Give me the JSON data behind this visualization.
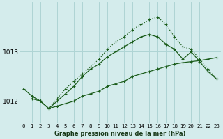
{
  "title": "Graphe pression niveau de la mer (hPa)",
  "bg_color": "#d4ecec",
  "grid_color": "#aed4d4",
  "line_color": "#1a5c1a",
  "xlim": [
    -0.5,
    23.5
  ],
  "ylim": [
    1011.55,
    1014.0
  ],
  "yticks": [
    1012,
    1013
  ],
  "xticks": [
    0,
    1,
    2,
    3,
    4,
    5,
    6,
    7,
    8,
    9,
    10,
    11,
    12,
    13,
    14,
    15,
    16,
    17,
    18,
    19,
    20,
    21,
    22,
    23
  ],
  "line_straight": {
    "x": [
      1,
      2,
      3,
      4,
      5,
      6,
      7,
      8,
      9,
      10,
      11,
      12,
      13,
      14,
      15,
      16,
      17,
      18,
      19,
      20,
      21,
      22,
      23
    ],
    "y": [
      1012.05,
      1012.0,
      1011.85,
      1011.9,
      1011.95,
      1012.0,
      1012.1,
      1012.15,
      1012.2,
      1012.3,
      1012.35,
      1012.4,
      1012.5,
      1012.55,
      1012.6,
      1012.65,
      1012.7,
      1012.75,
      1012.78,
      1012.8,
      1012.82,
      1012.85,
      1012.88
    ]
  },
  "line_mid": {
    "x": [
      0,
      1,
      2,
      3,
      4,
      5,
      6,
      7,
      8,
      9,
      10,
      11,
      12,
      13,
      14,
      15,
      16,
      17,
      18,
      19,
      20,
      21,
      22,
      23
    ],
    "y": [
      1012.25,
      1012.1,
      1012.0,
      1011.85,
      1012.0,
      1012.15,
      1012.3,
      1012.5,
      1012.65,
      1012.75,
      1012.9,
      1013.0,
      1013.1,
      1013.2,
      1013.3,
      1013.35,
      1013.3,
      1013.15,
      1013.05,
      1012.85,
      1013.0,
      1012.8,
      1012.6,
      1012.45
    ]
  },
  "line_upper": {
    "x": [
      1,
      2,
      3,
      4,
      5,
      6,
      7,
      8,
      9,
      10,
      11,
      12,
      13,
      14,
      15,
      16,
      17,
      18,
      19,
      20,
      21,
      22,
      23
    ],
    "y": [
      1012.1,
      1012.0,
      1011.85,
      1012.05,
      1012.25,
      1012.4,
      1012.55,
      1012.7,
      1012.85,
      1013.05,
      1013.2,
      1013.3,
      1013.45,
      1013.55,
      1013.65,
      1013.7,
      1013.55,
      1013.3,
      1013.1,
      1013.05,
      1012.85,
      1012.65,
      1012.45
    ]
  }
}
